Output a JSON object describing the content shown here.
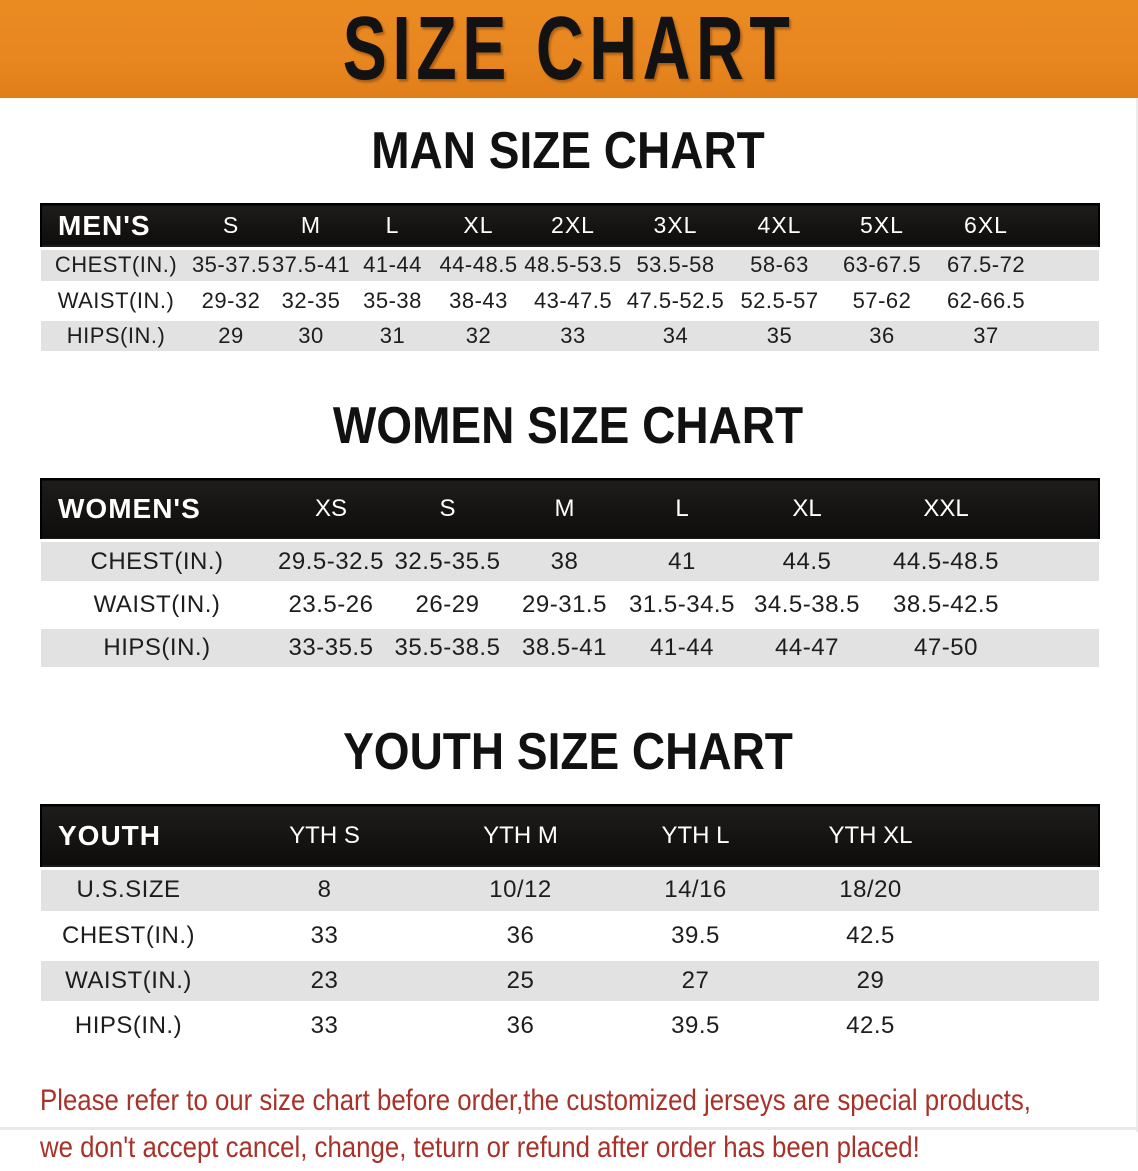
{
  "banner": {
    "title": "SIZE CHART"
  },
  "colors": {
    "banner_bg": "#E8861F",
    "table_header_bg": "#141312",
    "row_stripe": "#E2E2E2",
    "disclaimer_text": "#A8322A"
  },
  "sections": [
    {
      "title": "MAN SIZE CHART",
      "group_label": "MEN'S",
      "columns": [
        "S",
        "M",
        "L",
        "XL",
        "2XL",
        "3XL",
        "4XL",
        "5XL",
        "6XL"
      ],
      "rows": [
        {
          "label": "CHEST(IN.)",
          "values": [
            "35-37.5",
            "37.5-41",
            "41-44",
            "44-48.5",
            "48.5-53.5",
            "53.5-58",
            "58-63",
            "63-67.5",
            "67.5-72"
          ]
        },
        {
          "label": "WAIST(IN.)",
          "values": [
            "29-32",
            "32-35",
            "35-38",
            "38-43",
            "43-47.5",
            "47.5-52.5",
            "52.5-57",
            "57-62",
            "62-66.5"
          ]
        },
        {
          "label": "HIPS(IN.)",
          "values": [
            "29",
            "30",
            "31",
            "32",
            "33",
            "34",
            "35",
            "36",
            "37"
          ]
        }
      ]
    },
    {
      "title": "WOMEN SIZE CHART",
      "group_label": "WOMEN'S",
      "columns": [
        "XS",
        "S",
        "M",
        "L",
        "XL",
        "XXL"
      ],
      "rows": [
        {
          "label": "CHEST(IN.)",
          "values": [
            "29.5-32.5",
            "32.5-35.5",
            "38",
            "41",
            "44.5",
            "44.5-48.5"
          ]
        },
        {
          "label": "WAIST(IN.)",
          "values": [
            "23.5-26",
            "26-29",
            "29-31.5",
            "31.5-34.5",
            "34.5-38.5",
            "38.5-42.5"
          ]
        },
        {
          "label": "HIPS(IN.)",
          "values": [
            "33-35.5",
            "35.5-38.5",
            "38.5-41",
            "41-44",
            "44-47",
            "47-50"
          ]
        }
      ]
    },
    {
      "title": "YOUTH SIZE CHART",
      "group_label": "YOUTH",
      "columns": [
        "YTH S",
        "YTH M",
        "YTH L",
        "YTH XL"
      ],
      "rows": [
        {
          "label": "U.S.SIZE",
          "values": [
            "8",
            "10/12",
            "14/16",
            "18/20"
          ]
        },
        {
          "label": "CHEST(IN.)",
          "values": [
            "33",
            "36",
            "39.5",
            "42.5"
          ]
        },
        {
          "label": "WAIST(IN.)",
          "values": [
            "23",
            "25",
            "27",
            "29"
          ]
        },
        {
          "label": "HIPS(IN.)",
          "values": [
            "33",
            "36",
            "39.5",
            "42.5"
          ]
        }
      ]
    }
  ],
  "disclaimer": {
    "line1": "Please refer to our size chart before order,the customized jerseys are special products,",
    "line2": "we don't accept cancel, change, teturn or refund after order has been placed!"
  }
}
